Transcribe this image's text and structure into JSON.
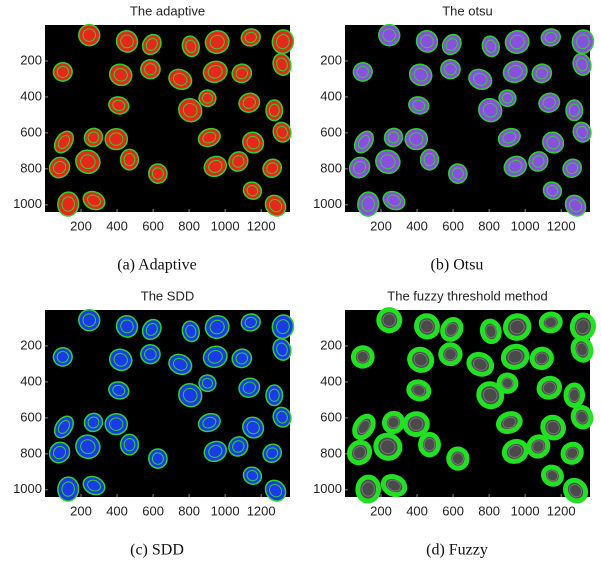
{
  "panels": [
    {
      "title": "The adaptive",
      "caption": "(a) Adaptive",
      "xlim": [
        0,
        1360
      ],
      "ylim": [
        0,
        1040
      ],
      "xticks": [
        200,
        400,
        600,
        800,
        1000,
        1200
      ],
      "yticks": [
        200,
        400,
        600,
        800,
        1000
      ]
    },
    {
      "title": "The otsu",
      "caption": "(b) Otsu",
      "xlim": [
        0,
        1360
      ],
      "ylim": [
        0,
        1040
      ],
      "xticks": [
        200,
        400,
        600,
        800,
        1000,
        1200
      ],
      "yticks": [
        200,
        400,
        600,
        800,
        1000
      ]
    },
    {
      "title": "The SDD",
      "caption": "(c) SDD",
      "xlim": [
        0,
        1360
      ],
      "ylim": [
        0,
        1040
      ],
      "xticks": [
        200,
        400,
        600,
        800,
        1000,
        1200
      ],
      "yticks": [
        200,
        400,
        600,
        800,
        1000
      ]
    },
    {
      "title": "The fuzzy threshold method",
      "caption": "(d) Fuzzy",
      "xlim": [
        0,
        1360
      ],
      "ylim": [
        0,
        1040
      ],
      "xticks": [
        200,
        400,
        600,
        800,
        1000,
        1200
      ],
      "yticks": [
        200,
        400,
        600,
        800,
        1000
      ]
    }
  ]
}
